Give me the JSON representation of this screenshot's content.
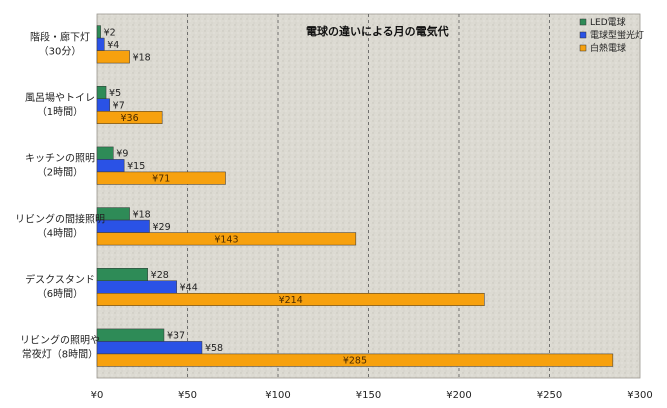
{
  "chart_data": {
    "type": "bar",
    "orientation": "horizontal",
    "title": "電球の違いによる月の電気代",
    "categories": [
      [
        "階段・廊下灯",
        "（30分）"
      ],
      [
        "風呂場やトイレ",
        "（1時間）"
      ],
      [
        "キッチンの照明",
        "（2時間）"
      ],
      [
        "リビングの間接照明",
        "（4時間）"
      ],
      [
        "デスクスタンド",
        "（6時間）"
      ],
      [
        "リビングの照明や",
        "常夜灯（8時間）"
      ]
    ],
    "series": [
      {
        "name": "LED電球",
        "color": "#2e8b57",
        "values": [
          2,
          5,
          9,
          18,
          28,
          37
        ]
      },
      {
        "name": "電球型蛍光灯",
        "color": "#2a52e6",
        "values": [
          4,
          7,
          15,
          29,
          44,
          58
        ]
      },
      {
        "name": "白熱電球",
        "color": "#f7a10e",
        "values": [
          18,
          36,
          71,
          143,
          214,
          285
        ]
      }
    ],
    "value_prefix": "¥",
    "xlim": [
      0,
      300
    ],
    "xticks": [
      "¥0",
      "¥50",
      "¥100",
      "¥150",
      "¥200",
      "¥250",
      "¥300"
    ],
    "xtick_values": [
      0,
      50,
      100,
      150,
      200,
      250,
      300
    ],
    "grid": "vertical dashed",
    "legend_position": "top-right"
  }
}
